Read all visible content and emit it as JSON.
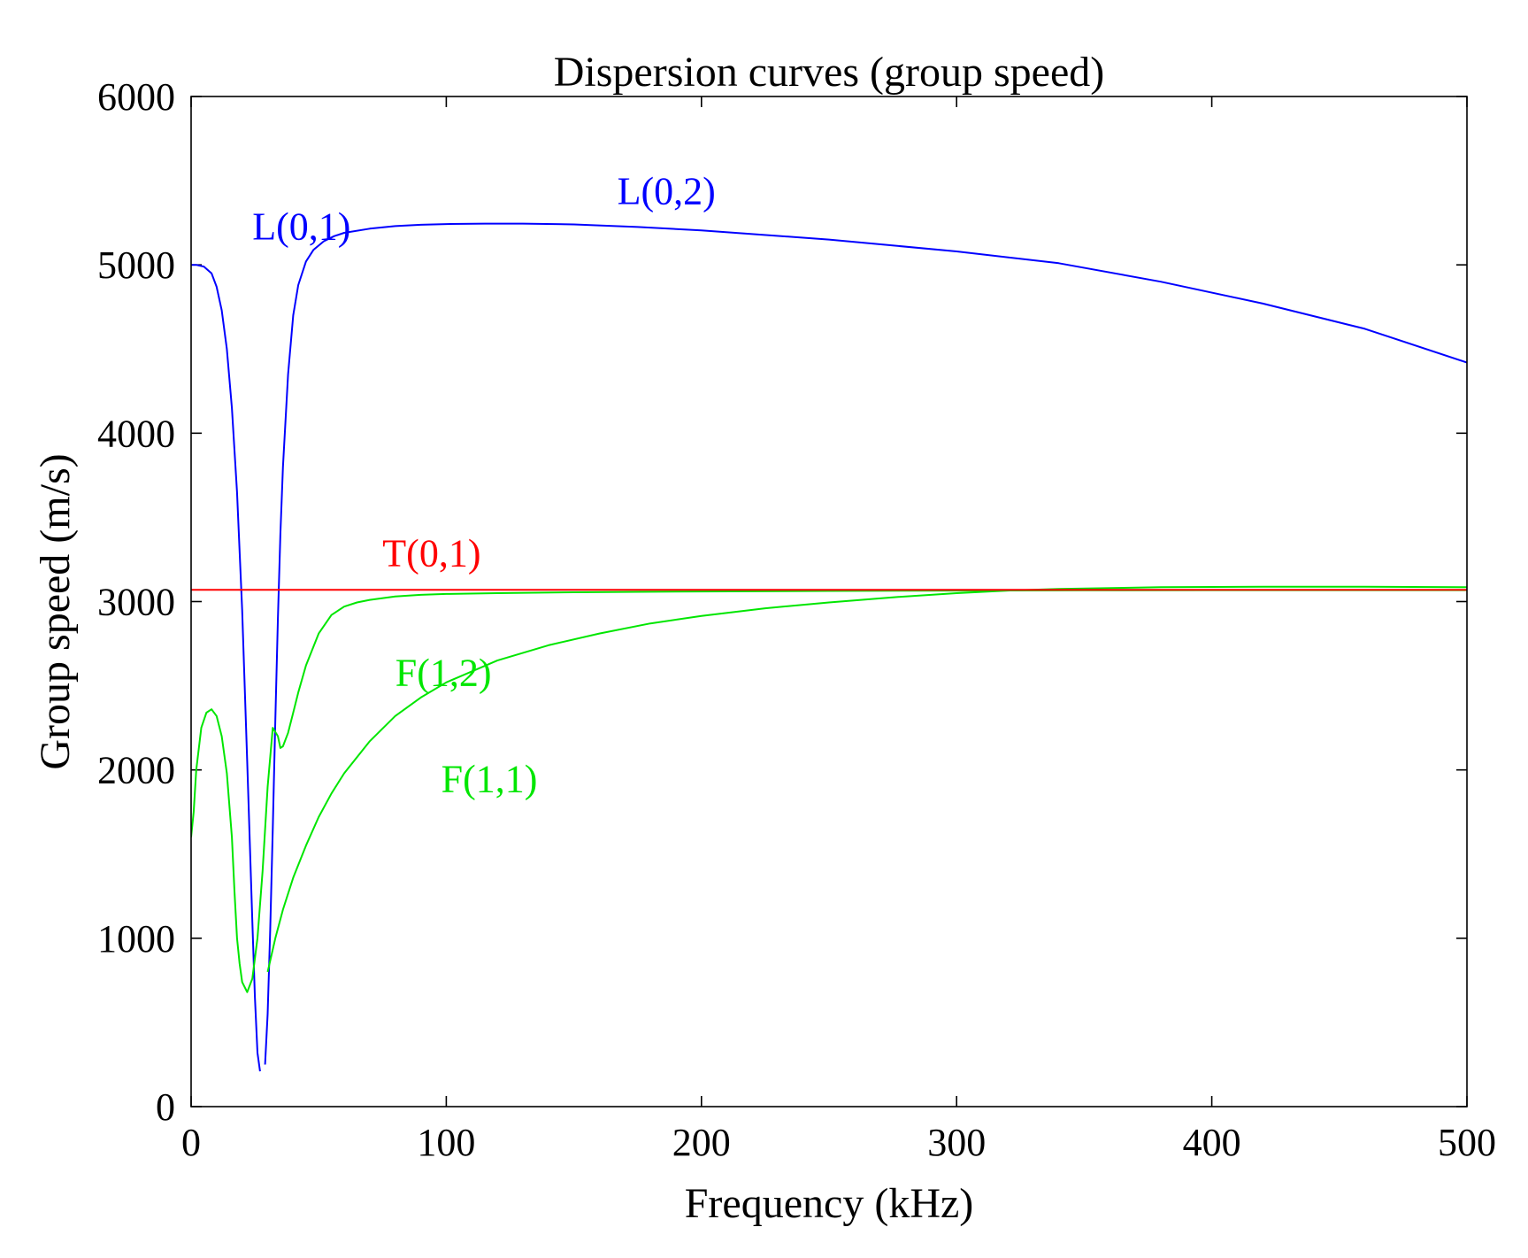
{
  "chart_data": {
    "type": "line",
    "title": "Dispersion curves (group speed)",
    "xlabel": "Frequency (kHz)",
    "ylabel": "Group speed (m/s)",
    "xlim": [
      0,
      500
    ],
    "ylim": [
      0,
      6000
    ],
    "xticks": [
      0,
      100,
      200,
      300,
      400,
      500
    ],
    "yticks": [
      0,
      1000,
      2000,
      3000,
      4000,
      5000,
      6000
    ],
    "grid": false,
    "box": true,
    "series": [
      {
        "name": "L(0,1)",
        "color": "#0000ff",
        "x": [
          0,
          2,
          5,
          8,
          10,
          12,
          14,
          16,
          18,
          20,
          22,
          24,
          25,
          26,
          27
        ],
        "y": [
          5000,
          5000,
          4990,
          4950,
          4870,
          4730,
          4500,
          4150,
          3650,
          2950,
          2050,
          1100,
          650,
          320,
          210
        ]
      },
      {
        "name": "L(0,2)",
        "color": "#0000ff",
        "x": [
          29,
          30,
          31,
          32,
          33,
          34,
          35,
          36,
          38,
          40,
          42,
          45,
          48,
          52,
          56,
          60,
          70,
          80,
          90,
          100,
          115,
          130,
          150,
          175,
          200,
          250,
          300,
          340,
          380,
          420,
          460,
          500
        ],
        "y": [
          250,
          550,
          1050,
          1650,
          2300,
          2900,
          3400,
          3800,
          4350,
          4700,
          4880,
          5020,
          5090,
          5140,
          5170,
          5190,
          5215,
          5230,
          5238,
          5242,
          5245,
          5245,
          5240,
          5225,
          5205,
          5150,
          5080,
          5010,
          4900,
          4770,
          4620,
          4420
        ]
      },
      {
        "name": "F(1,1)",
        "color": "#00e600",
        "x": [
          30,
          33,
          36,
          40,
          45,
          50,
          55,
          60,
          70,
          80,
          90,
          100,
          120,
          140,
          160,
          180,
          200,
          225,
          250,
          275,
          300,
          320,
          340,
          380,
          420,
          460,
          500
        ],
        "y": [
          800,
          1000,
          1170,
          1360,
          1550,
          1720,
          1860,
          1980,
          2170,
          2320,
          2430,
          2520,
          2650,
          2740,
          2810,
          2870,
          2915,
          2960,
          2995,
          3025,
          3050,
          3065,
          3075,
          3085,
          3088,
          3088,
          3085
        ]
      },
      {
        "name": "F(1,2)",
        "color": "#00e600",
        "x": [
          0,
          1,
          2,
          4,
          6,
          8,
          10,
          12,
          14,
          16,
          17,
          18,
          19,
          20,
          22,
          24,
          26,
          28,
          30,
          32,
          34,
          35,
          36,
          38,
          40,
          42,
          45,
          50,
          55,
          60,
          65,
          70,
          80,
          90,
          100,
          120,
          150,
          200,
          250,
          300,
          350,
          400,
          450,
          500
        ],
        "y": [
          1600,
          1750,
          2000,
          2250,
          2340,
          2360,
          2320,
          2200,
          1980,
          1600,
          1280,
          1000,
          850,
          740,
          680,
          760,
          1000,
          1400,
          1900,
          2250,
          2200,
          2130,
          2140,
          2220,
          2340,
          2460,
          2620,
          2810,
          2920,
          2970,
          2995,
          3010,
          3030,
          3040,
          3045,
          3050,
          3055,
          3060,
          3063,
          3065,
          3067,
          3068,
          3068,
          3068
        ]
      },
      {
        "name": "T(0,1)",
        "color": "#ff0000",
        "x": [
          0,
          500
        ],
        "y": [
          3070,
          3070
        ]
      }
    ],
    "annotations": [
      {
        "text": "L(0,1)",
        "x": 24,
        "y": 5150,
        "color": "#0000ff"
      },
      {
        "text": "L(0,2)",
        "x": 167,
        "y": 5360,
        "color": "#0000ff"
      },
      {
        "text": "T(0,1)",
        "x": 75,
        "y": 3210,
        "color": "#ff0000"
      },
      {
        "text": "F(1,2)",
        "x": 80,
        "y": 2500,
        "color": "#00e600"
      },
      {
        "text": "F(1,1)",
        "x": 98,
        "y": 1870,
        "color": "#00e600"
      }
    ]
  }
}
